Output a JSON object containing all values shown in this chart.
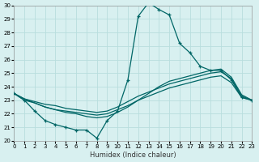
{
  "xlabel": "Humidex (Indice chaleur)",
  "bg_color": "#d8f0f0",
  "grid_color": "#b8dede",
  "line_color": "#006666",
  "xlim": [
    0,
    23
  ],
  "ylim": [
    20,
    30
  ],
  "xticks": [
    0,
    1,
    2,
    3,
    4,
    5,
    6,
    7,
    8,
    9,
    10,
    11,
    12,
    13,
    14,
    15,
    16,
    17,
    18,
    19,
    20,
    21,
    22,
    23
  ],
  "yticks": [
    20,
    21,
    22,
    23,
    24,
    25,
    26,
    27,
    28,
    29,
    30
  ],
  "series": [
    {
      "y": [
        23.5,
        23.0,
        22.8,
        22.5,
        22.3,
        22.2,
        22.1,
        22.0,
        21.9,
        22.0,
        22.3,
        22.6,
        23.0,
        23.3,
        23.6,
        23.9,
        24.1,
        24.3,
        24.5,
        24.7,
        24.8,
        24.3,
        23.2,
        23.0
      ],
      "linestyle": "-",
      "marker": false
    },
    {
      "y": [
        23.5,
        23.1,
        22.9,
        22.7,
        22.6,
        22.4,
        22.3,
        22.2,
        22.1,
        22.2,
        22.5,
        22.9,
        23.3,
        23.6,
        23.9,
        24.2,
        24.4,
        24.6,
        24.8,
        25.0,
        25.1,
        24.6,
        23.3,
        23.0
      ],
      "linestyle": "-",
      "marker": false
    },
    {
      "y": [
        23.5,
        23.1,
        22.8,
        22.5,
        22.3,
        22.1,
        22.0,
        21.8,
        21.7,
        21.8,
        22.1,
        22.5,
        23.0,
        23.5,
        24.0,
        24.4,
        24.6,
        24.8,
        25.0,
        25.2,
        25.3,
        24.7,
        23.4,
        23.0
      ],
      "linestyle": "-",
      "marker": false
    },
    {
      "y": [
        23.5,
        23.0,
        22.2,
        21.5,
        21.2,
        21.0,
        20.8,
        20.8,
        20.2,
        21.5,
        22.2,
        24.5,
        29.2,
        30.2,
        29.7,
        29.3,
        27.2,
        26.5,
        25.5,
        25.2,
        25.2,
        24.5,
        23.2,
        23.0
      ],
      "linestyle": "-",
      "marker": true
    }
  ]
}
